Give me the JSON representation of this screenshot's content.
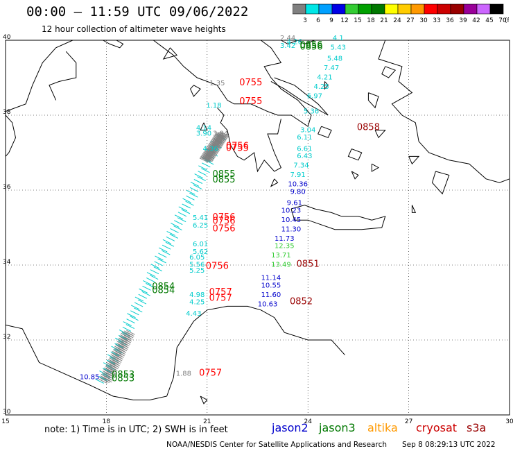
{
  "header": {
    "title": "00:00 – 11:59 UTC 09/06/2022",
    "subtitle": "12 hour collection of altimeter wave heights"
  },
  "colorbar": {
    "labels": [
      "3",
      "6",
      "9",
      "12",
      "15",
      "18",
      "21",
      "24",
      "27",
      "30",
      "33",
      "36",
      "39",
      "42",
      "45",
      "70"
    ],
    "unit": "(ft)",
    "colors": [
      "#808080",
      "#00e6e6",
      "#00a0ff",
      "#0000e6",
      "#33cc33",
      "#00a000",
      "#007800",
      "#ffff00",
      "#ffcc00",
      "#ff9900",
      "#ff0000",
      "#cc0000",
      "#990000",
      "#990099",
      "#cc66ff",
      "#000000"
    ]
  },
  "axes": {
    "lon_labels": [
      "15",
      "18",
      "21",
      "24",
      "27",
      "30"
    ],
    "lat_labels": [
      "40",
      "38",
      "36",
      "34",
      "32",
      "30"
    ],
    "lon_range": [
      15,
      30
    ],
    "lat_range": [
      30,
      40
    ],
    "grid": "dotted"
  },
  "time_labels": [
    {
      "text": "0856",
      "lon": 24.1,
      "lat": 39.8,
      "color": "#007800"
    },
    {
      "text": "0856",
      "lon": 24.1,
      "lat": 39.75,
      "color": "#007800"
    },
    {
      "text": "0755",
      "lon": 22.3,
      "lat": 38.8,
      "color": "#ff0000"
    },
    {
      "text": "0755",
      "lon": 22.3,
      "lat": 38.3,
      "color": "#ff0000"
    },
    {
      "text": "0858",
      "lon": 25.8,
      "lat": 37.6,
      "color": "#990000"
    },
    {
      "text": "0756",
      "lon": 21.9,
      "lat": 37.1,
      "color": "#ff0000"
    },
    {
      "text": "0755",
      "lon": 21.9,
      "lat": 37.05,
      "color": "#ff0000"
    },
    {
      "text": "0855",
      "lon": 21.5,
      "lat": 36.35,
      "color": "#007800"
    },
    {
      "text": "0855",
      "lon": 21.5,
      "lat": 36.2,
      "color": "#007800"
    },
    {
      "text": "0756",
      "lon": 21.5,
      "lat": 35.2,
      "color": "#ff0000"
    },
    {
      "text": "0756",
      "lon": 21.5,
      "lat": 35.1,
      "color": "#ff0000"
    },
    {
      "text": "0756",
      "lon": 21.5,
      "lat": 34.9,
      "color": "#ff0000"
    },
    {
      "text": "0756",
      "lon": 21.3,
      "lat": 33.9,
      "color": "#ff0000"
    },
    {
      "text": "0851",
      "lon": 24.0,
      "lat": 33.95,
      "color": "#990000"
    },
    {
      "text": "0854",
      "lon": 19.7,
      "lat": 33.35,
      "color": "#007800"
    },
    {
      "text": "0854",
      "lon": 19.7,
      "lat": 33.25,
      "color": "#007800"
    },
    {
      "text": "0757",
      "lon": 21.4,
      "lat": 33.2,
      "color": "#ff0000"
    },
    {
      "text": "0757",
      "lon": 21.4,
      "lat": 33.05,
      "color": "#ff0000"
    },
    {
      "text": "0852",
      "lon": 23.8,
      "lat": 32.95,
      "color": "#990000"
    },
    {
      "text": "0853",
      "lon": 18.5,
      "lat": 31.0,
      "color": "#007800"
    },
    {
      "text": "0853",
      "lon": 18.5,
      "lat": 30.9,
      "color": "#007800"
    },
    {
      "text": "0757",
      "lon": 21.1,
      "lat": 31.05,
      "color": "#ff0000"
    }
  ],
  "wave_labels": [
    {
      "text": "2.44",
      "lon": 23.4,
      "lat": 40.0,
      "color": "#808080"
    },
    {
      "text": "3.42",
      "lon": 23.4,
      "lat": 39.8,
      "color": "#00cccc"
    },
    {
      "text": "4.26",
      "lon": 23.6,
      "lat": 39.9,
      "color": "#00cccc"
    },
    {
      "text": "4.1",
      "lon": 24.9,
      "lat": 40.0,
      "color": "#00cccc"
    },
    {
      "text": "5.43",
      "lon": 24.9,
      "lat": 39.75,
      "color": "#00cccc"
    },
    {
      "text": "5.48",
      "lon": 24.8,
      "lat": 39.45,
      "color": "#00cccc"
    },
    {
      "text": "7.47",
      "lon": 24.7,
      "lat": 39.2,
      "color": "#00cccc"
    },
    {
      "text": "4.21",
      "lon": 24.5,
      "lat": 38.95,
      "color": "#00cccc"
    },
    {
      "text": "4.25",
      "lon": 24.4,
      "lat": 38.7,
      "color": "#00cccc"
    },
    {
      "text": "6.97",
      "lon": 24.2,
      "lat": 38.45,
      "color": "#00cccc"
    },
    {
      "text": "1.35",
      "lon": 21.3,
      "lat": 38.8,
      "color": "#808080"
    },
    {
      "text": "1.18",
      "lon": 21.2,
      "lat": 38.2,
      "color": "#00cccc"
    },
    {
      "text": "5.36",
      "lon": 24.1,
      "lat": 38.05,
      "color": "#00cccc"
    },
    {
      "text": "4.14",
      "lon": 20.9,
      "lat": 37.6,
      "color": "#00cccc"
    },
    {
      "text": "3.90",
      "lon": 20.9,
      "lat": 37.45,
      "color": "#00cccc"
    },
    {
      "text": "3.94",
      "lon": 21.4,
      "lat": 37.45,
      "color": "#808080"
    },
    {
      "text": "3.04",
      "lon": 24.0,
      "lat": 37.55,
      "color": "#00cccc"
    },
    {
      "text": "6.11",
      "lon": 23.9,
      "lat": 37.35,
      "color": "#00cccc"
    },
    {
      "text": "6.61",
      "lon": 23.9,
      "lat": 37.05,
      "color": "#00cccc"
    },
    {
      "text": "6.43",
      "lon": 23.9,
      "lat": 36.85,
      "color": "#00cccc"
    },
    {
      "text": "7.34",
      "lon": 23.8,
      "lat": 36.6,
      "color": "#00cccc"
    },
    {
      "text": "7.91",
      "lon": 23.7,
      "lat": 36.35,
      "color": "#00cccc"
    },
    {
      "text": "10.36",
      "lon": 23.7,
      "lat": 36.1,
      "color": "#0000cc"
    },
    {
      "text": "9.80",
      "lon": 23.7,
      "lat": 35.9,
      "color": "#0000cc"
    },
    {
      "text": "9.61",
      "lon": 23.6,
      "lat": 35.6,
      "color": "#0000cc"
    },
    {
      "text": "10.23",
      "lon": 23.5,
      "lat": 35.4,
      "color": "#0000cc"
    },
    {
      "text": "10.45",
      "lon": 23.5,
      "lat": 35.15,
      "color": "#0000cc"
    },
    {
      "text": "11.30",
      "lon": 23.5,
      "lat": 34.9,
      "color": "#0000cc"
    },
    {
      "text": "11.73",
      "lon": 23.3,
      "lat": 34.65,
      "color": "#0000cc"
    },
    {
      "text": "12.35",
      "lon": 23.3,
      "lat": 34.45,
      "color": "#33cc33"
    },
    {
      "text": "13.71",
      "lon": 23.2,
      "lat": 34.2,
      "color": "#33cc33"
    },
    {
      "text": "13.49",
      "lon": 23.2,
      "lat": 33.95,
      "color": "#33cc33"
    },
    {
      "text": "11.14",
      "lon": 22.9,
      "lat": 33.6,
      "color": "#0000cc"
    },
    {
      "text": "10.55",
      "lon": 22.9,
      "lat": 33.4,
      "color": "#0000cc"
    },
    {
      "text": "11.60",
      "lon": 22.9,
      "lat": 33.15,
      "color": "#0000cc"
    },
    {
      "text": "10.63",
      "lon": 22.8,
      "lat": 32.9,
      "color": "#0000cc"
    },
    {
      "text": "6.01",
      "lon": 20.8,
      "lat": 34.5,
      "color": "#00cccc"
    },
    {
      "text": "5.62",
      "lon": 20.8,
      "lat": 34.3,
      "color": "#00cccc"
    },
    {
      "text": "6.05",
      "lon": 20.7,
      "lat": 34.15,
      "color": "#00cccc"
    },
    {
      "text": "5.56",
      "lon": 20.7,
      "lat": 33.95,
      "color": "#00cccc"
    },
    {
      "text": "5.25",
      "lon": 20.7,
      "lat": 33.8,
      "color": "#00cccc"
    },
    {
      "text": "6.25",
      "lon": 20.8,
      "lat": 35.0,
      "color": "#00cccc"
    },
    {
      "text": "5.41",
      "lon": 20.8,
      "lat": 35.2,
      "color": "#00cccc"
    },
    {
      "text": "4.98",
      "lon": 20.7,
      "lat": 33.15,
      "color": "#00cccc"
    },
    {
      "text": "4.25",
      "lon": 20.7,
      "lat": 32.95,
      "color": "#00cccc"
    },
    {
      "text": "4.43",
      "lon": 20.6,
      "lat": 32.65,
      "color": "#00cccc"
    },
    {
      "text": "4.36",
      "lon": 21.1,
      "lat": 37.05,
      "color": "#00cccc"
    },
    {
      "text": "10.85",
      "lon": 17.5,
      "lat": 30.95,
      "color": "#0000cc"
    },
    {
      "text": "1.88",
      "lon": 20.3,
      "lat": 31.05,
      "color": "#808080"
    }
  ],
  "notes": {
    "note": "note:  1) Time is in UTC; 2) SWH is in feet",
    "satellites": [
      {
        "name": "jason2",
        "color": "#0000cc"
      },
      {
        "name": "jason3",
        "color": "#007800"
      },
      {
        "name": "altika",
        "color": "#ff9900"
      },
      {
        "name": "cryosat",
        "color": "#cc0000"
      },
      {
        "name": "s3a",
        "color": "#990000"
      }
    ],
    "credit": "NOAA/NESDIS Center for Satellite Applications and Research",
    "timestamp": "Sep  8 08:29:13 UTC 2022"
  }
}
